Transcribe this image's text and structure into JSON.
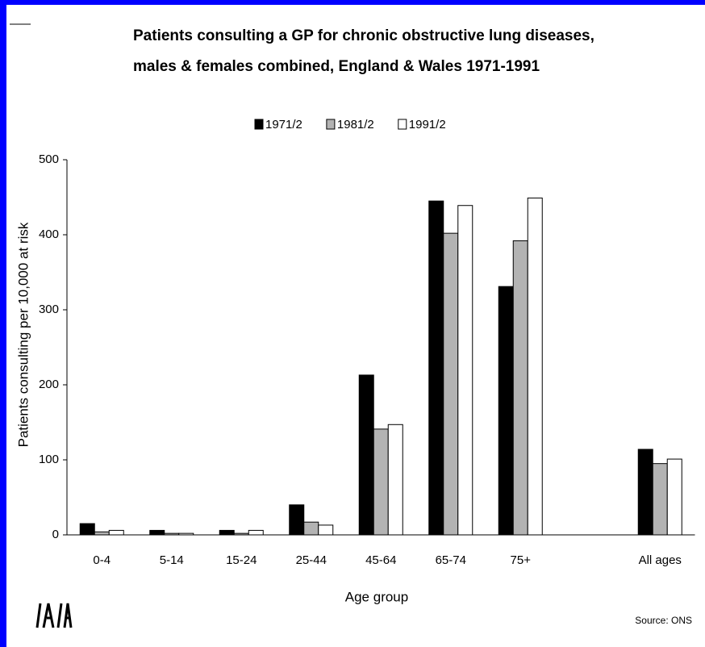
{
  "chart_data": {
    "type": "bar",
    "title": [
      "Patients consulting a GP for chronic obstructive lung diseases,",
      "males & females combined, England & Wales 1971-1991"
    ],
    "categories": [
      "0-4",
      "5-14",
      "15-24",
      "25-44",
      "45-64",
      "65-74",
      "75+",
      null,
      "All ages"
    ],
    "series": [
      {
        "name": "1971/2",
        "color": "#000000",
        "values": [
          15,
          6,
          6,
          40,
          213,
          445,
          331,
          null,
          114
        ]
      },
      {
        "name": "1981/2",
        "color": "#b3b3b3",
        "values": [
          4,
          2,
          2,
          17,
          141,
          402,
          392,
          null,
          95
        ]
      },
      {
        "name": "1991/2",
        "color": "#ffffff",
        "values": [
          6,
          2,
          6,
          13,
          147,
          439,
          449,
          null,
          101
        ]
      }
    ],
    "x_label": "Age group",
    "y_label": "Patients consulting per 10,000 at risk",
    "ylim": [
      0,
      500
    ],
    "yticks": [
      0,
      100,
      200,
      300,
      400,
      500
    ],
    "legend": "top",
    "source": "Source: ONS"
  }
}
